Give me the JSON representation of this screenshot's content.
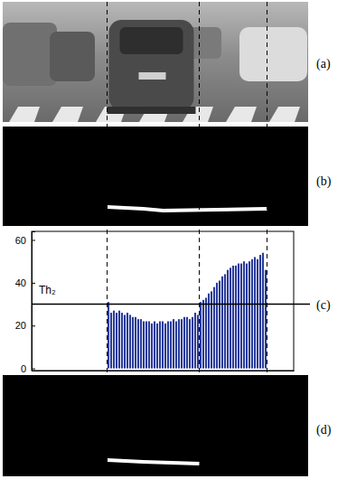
{
  "chart_data": {
    "type": "bar",
    "x": [
      85,
      88,
      91,
      94,
      97,
      100,
      103,
      106,
      109,
      112,
      115,
      118,
      121,
      124,
      127,
      130,
      133,
      136,
      139,
      142,
      145,
      148,
      151,
      154,
      157,
      160,
      163,
      166,
      169,
      172,
      175,
      178,
      181,
      184,
      187,
      190,
      193,
      196,
      199,
      202,
      205,
      208,
      211,
      214,
      217,
      220,
      223,
      226,
      229,
      232,
      235,
      238,
      241,
      244,
      247,
      250,
      253,
      256,
      259
    ],
    "values": [
      31,
      26,
      27,
      26,
      27,
      26,
      25,
      26,
      25,
      24,
      24,
      23,
      23,
      22,
      22,
      22,
      21,
      22,
      21,
      22,
      22,
      21,
      22,
      22,
      23,
      22,
      23,
      23,
      24,
      24,
      23,
      24,
      26,
      25,
      31,
      32,
      33,
      35,
      36,
      38,
      40,
      41,
      43,
      44,
      46,
      47,
      48,
      48,
      49,
      49,
      50,
      49,
      50,
      51,
      52,
      51,
      53,
      54,
      46
    ],
    "color": "#2a3c9b",
    "xlim": [
      0,
      290
    ],
    "ylim": [
      -1,
      64
    ],
    "yticks": [
      0,
      20,
      40,
      60
    ],
    "tick_labels": "y",
    "annotations": [
      {
        "text": "Th₂",
        "y": 30
      }
    ]
  },
  "panels": {
    "labels": [
      "(a)",
      "(b)",
      "(c)",
      "(d)"
    ]
  }
}
